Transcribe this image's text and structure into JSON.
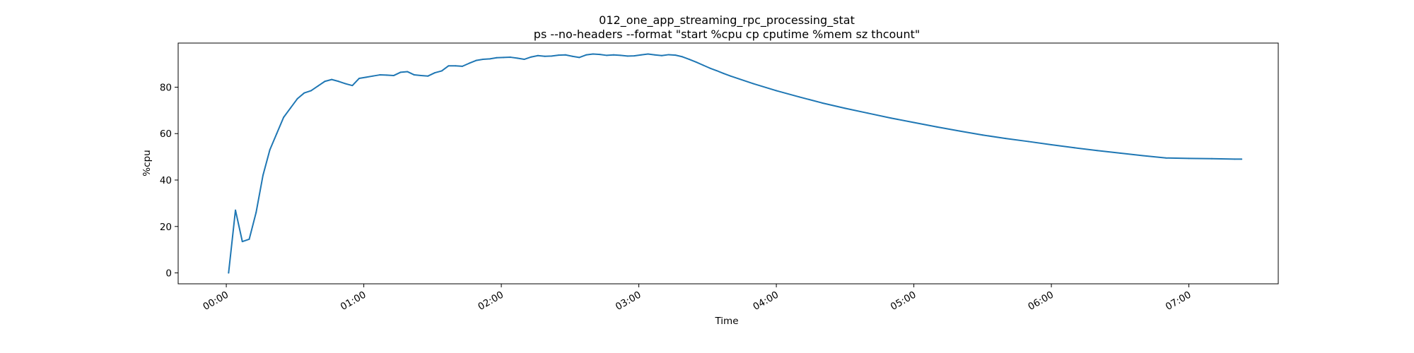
{
  "chart_data": {
    "type": "line",
    "title": "012_one_app_streaming_rpc_processing_stat",
    "subtitle": "ps --no-headers --format \"start %cpu cp cputime %mem sz thcount\"",
    "xlabel": "Time",
    "ylabel": "%cpu",
    "x_unit": "minutes",
    "xlim": [
      -21,
      459
    ],
    "ylim": [
      -4.7,
      99
    ],
    "grid": false,
    "color": "#1f77b4",
    "x_ticks": [
      {
        "value": 0,
        "label": "00:00"
      },
      {
        "value": 60,
        "label": "01:00"
      },
      {
        "value": 120,
        "label": "02:00"
      },
      {
        "value": 180,
        "label": "03:00"
      },
      {
        "value": 240,
        "label": "04:00"
      },
      {
        "value": 300,
        "label": "05:00"
      },
      {
        "value": 360,
        "label": "06:00"
      },
      {
        "value": 420,
        "label": "07:00"
      }
    ],
    "y_ticks": [
      {
        "value": 0,
        "label": "0"
      },
      {
        "value": 20,
        "label": "20"
      },
      {
        "value": 40,
        "label": "40"
      },
      {
        "value": 60,
        "label": "60"
      },
      {
        "value": 80,
        "label": "80"
      }
    ],
    "series": [
      {
        "x": [
          1,
          4,
          7,
          10,
          13,
          16,
          19,
          22,
          25,
          28,
          31,
          34,
          37,
          40,
          43,
          46,
          49,
          52,
          55,
          58,
          61,
          64,
          67,
          70,
          73,
          76,
          79,
          82,
          85,
          88,
          91,
          94,
          97,
          100,
          103,
          106,
          109,
          112,
          115,
          118,
          121,
          124,
          127,
          130,
          133,
          136,
          139,
          142,
          145,
          148,
          151,
          154,
          157,
          160,
          163,
          166,
          169,
          172,
          175,
          178,
          181,
          184,
          187,
          190,
          193,
          196,
          199,
          202,
          205,
          208,
          211,
          214,
          217,
          220,
          230,
          240,
          250,
          260,
          270,
          280,
          290,
          300,
          310,
          320,
          330,
          340,
          350,
          360,
          370,
          380,
          390,
          400,
          410,
          420,
          430,
          440,
          443
        ],
        "values": [
          0,
          27,
          13.5,
          14.5,
          26,
          42,
          53,
          60,
          67,
          71,
          75,
          77.5,
          78.5,
          80.5,
          82.5,
          83.3,
          82.5,
          81.5,
          80.7,
          83.8,
          84.3,
          84.8,
          85.3,
          85.2,
          85.0,
          86.4,
          86.7,
          85.3,
          85.0,
          84.8,
          86.2,
          87.0,
          89.2,
          89.2,
          89.0,
          90.3,
          91.5,
          92.0,
          92.2,
          92.7,
          92.8,
          92.9,
          92.5,
          92.0,
          93.0,
          93.6,
          93.3,
          93.4,
          93.8,
          93.9,
          93.3,
          92.8,
          93.9,
          94.3,
          94.1,
          93.7,
          93.9,
          93.7,
          93.4,
          93.5,
          93.9,
          94.3,
          93.9,
          93.6,
          94.0,
          93.8,
          93.1,
          92.0,
          90.8,
          89.5,
          88.2,
          87.1,
          85.9,
          84.8,
          81.5,
          78.5,
          75.8,
          73.2,
          70.9,
          68.8,
          66.7,
          64.8,
          62.9,
          61.1,
          59.4,
          57.9,
          56.6,
          55.2,
          53.9,
          52.7,
          51.6,
          50.5,
          49.5,
          49.3,
          49.2,
          49.0,
          49.0
        ]
      }
    ]
  }
}
